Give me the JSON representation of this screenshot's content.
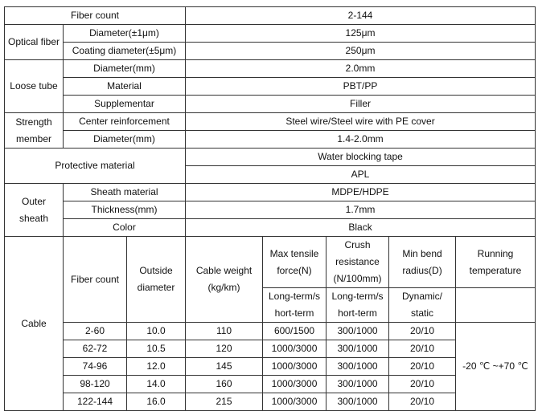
{
  "rows": {
    "fiber_count": {
      "label": "Fiber count",
      "value": "2-144"
    },
    "optical_fiber": {
      "group": "Optical fiber",
      "items": [
        {
          "label": "Diameter(±1μm)",
          "value": "125μm"
        },
        {
          "label": "Coating diameter(±5μm)",
          "value": "250μm"
        }
      ]
    },
    "loose_tube": {
      "group": "Loose tube",
      "items": [
        {
          "label": "Diameter(mm)",
          "value": "2.0mm"
        },
        {
          "label": "Material",
          "value": "PBT/PP"
        },
        {
          "label": "Supplementar",
          "value": "Filler"
        }
      ]
    },
    "strength_member": {
      "group": "Strength member",
      "items": [
        {
          "label": "Center reinforcement",
          "value": "Steel wire/Steel wire with PE cover"
        },
        {
          "label": "Diameter(mm)",
          "value": "1.4-2.0mm"
        }
      ]
    },
    "protective": {
      "label": "Protective material",
      "values": [
        "Water blocking tape",
        "APL"
      ]
    },
    "outer_sheath": {
      "group": "Outer sheath",
      "items": [
        {
          "label": "Sheath material",
          "value": "MDPE/HDPE"
        },
        {
          "label": "Thickness(mm)",
          "value": "1.7mm"
        },
        {
          "label": "Color",
          "value": "Black"
        }
      ]
    }
  },
  "cable": {
    "group": "Cable",
    "headers": [
      "Fiber count",
      "Outside diameter",
      "Cable weight (kg/km)",
      "Max tensile force(N)",
      "Crush resistance (N/100mm)",
      "Min bend radius(D)",
      "Running temperature"
    ],
    "subheaders": [
      "Long-term/s hort-term",
      "Long-term/s hort-term",
      "Dynamic/ static"
    ],
    "data": [
      [
        "2-60",
        "10.0",
        "110",
        "600/1500",
        "300/1000",
        "20/10"
      ],
      [
        "62-72",
        "10.5",
        "120",
        "1000/3000",
        "300/1000",
        "20/10"
      ],
      [
        "74-96",
        "12.0",
        "145",
        "1000/3000",
        "300/1000",
        "20/10"
      ],
      [
        "98-120",
        "14.0",
        "160",
        "1000/3000",
        "300/1000",
        "20/10"
      ],
      [
        "122-144",
        "16.0",
        "215",
        "1000/3000",
        "300/1000",
        "20/10"
      ]
    ],
    "temperature": "-20 ℃ ~+70 ℃"
  }
}
